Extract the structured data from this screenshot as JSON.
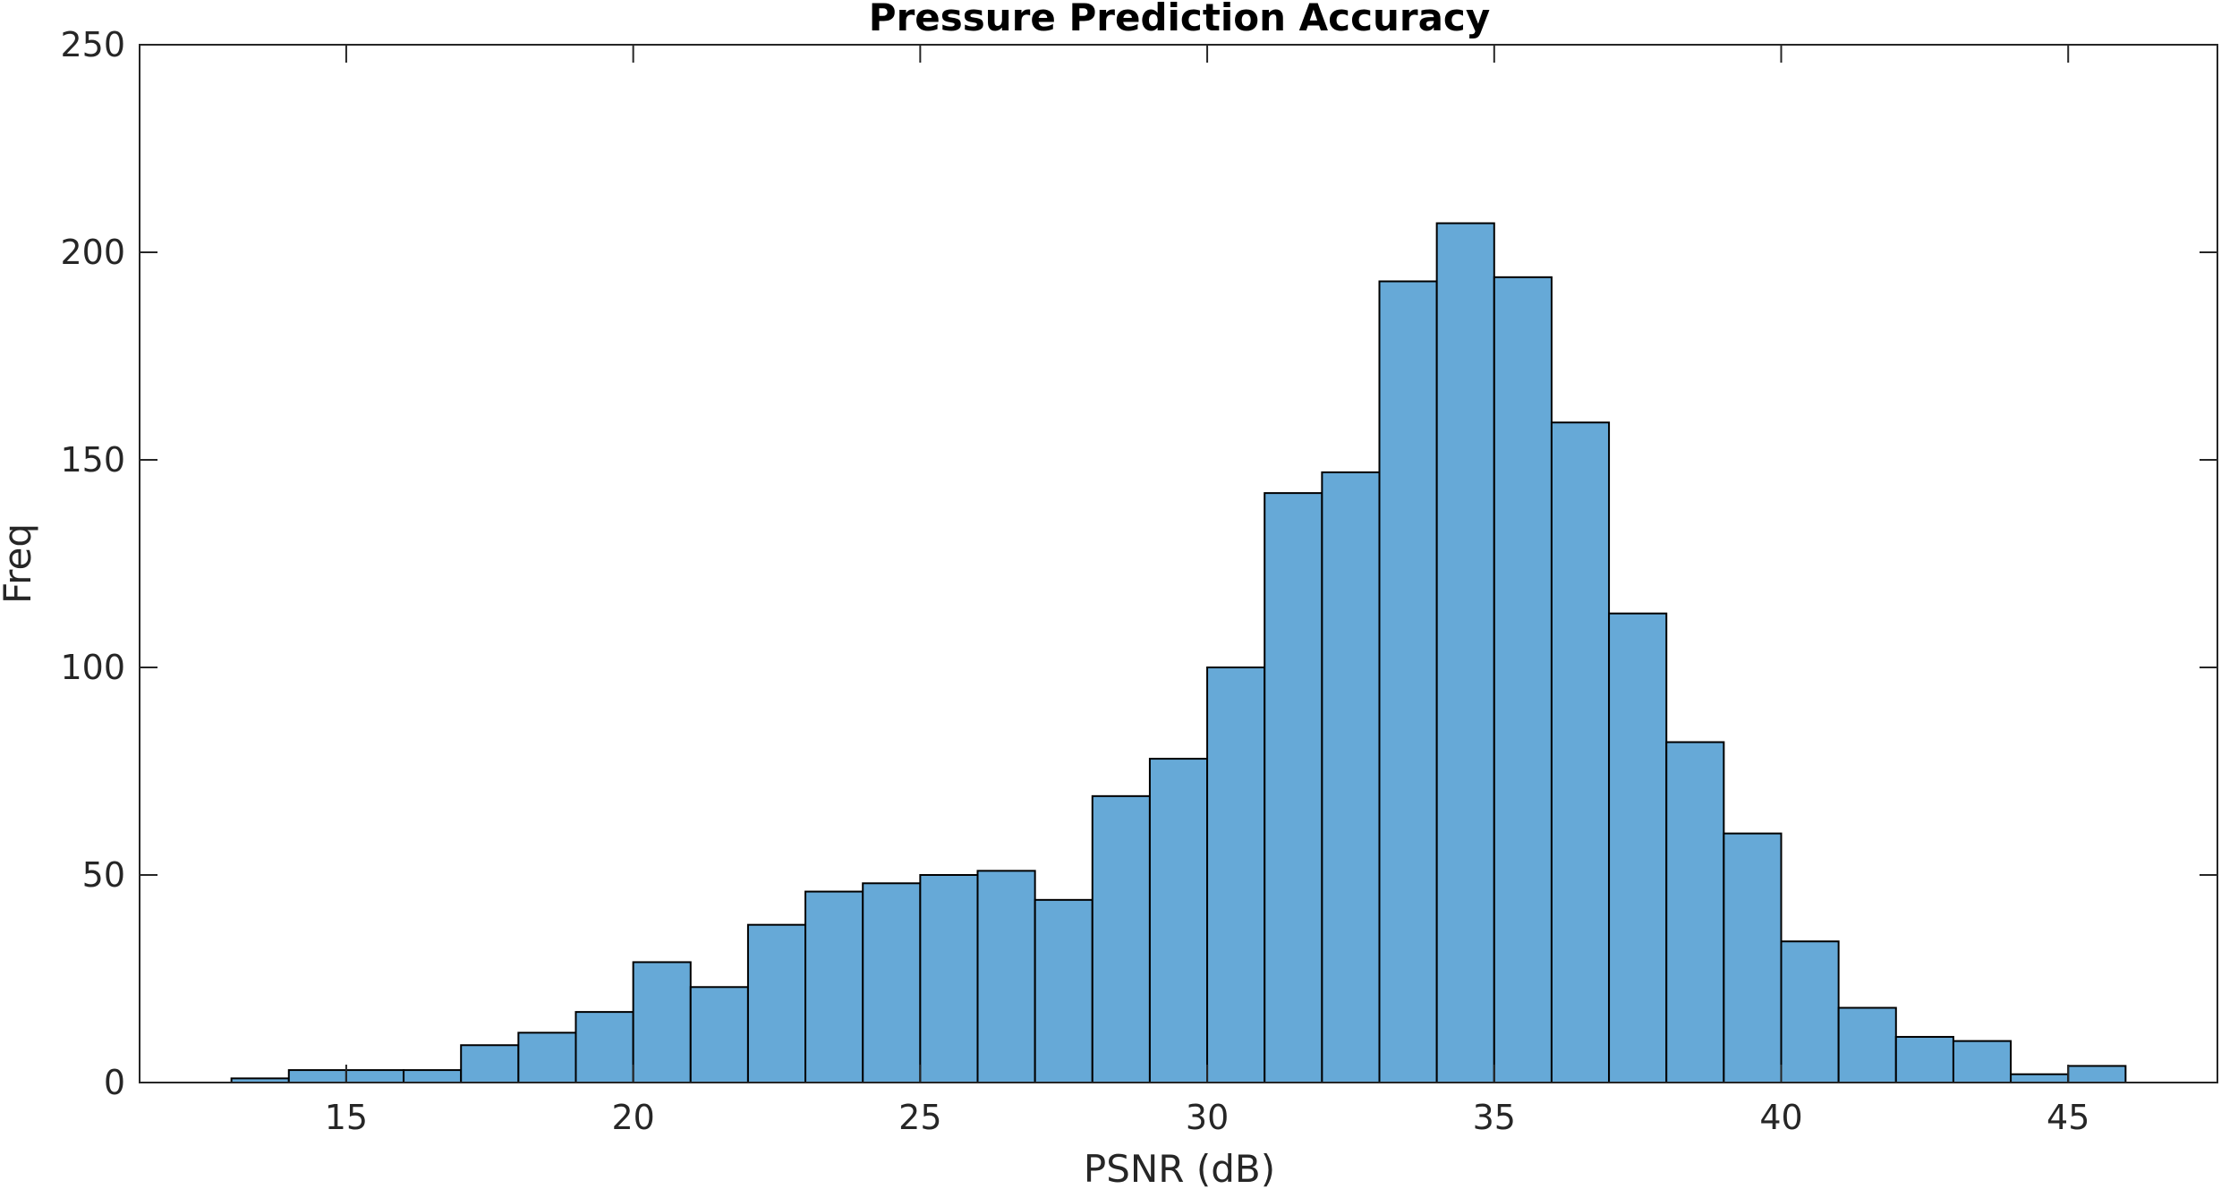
{
  "chart_data": {
    "type": "bar",
    "title": "Pressure Prediction Accuracy",
    "xlabel": "PSNR (dB)",
    "ylabel": "Freq",
    "xlim": [
      11.4,
      47.6
    ],
    "ylim": [
      0,
      250
    ],
    "grid": false,
    "bar_color": "#66a9d7",
    "edge_color": "#000000",
    "x_ticks": [
      "15",
      "20",
      "25",
      "30",
      "35",
      "40",
      "45"
    ],
    "y_ticks": [
      "0",
      "50",
      "100",
      "150",
      "200",
      "250"
    ],
    "bins": [
      {
        "x0": 13,
        "x1": 14,
        "value": 1
      },
      {
        "x0": 14,
        "x1": 15,
        "value": 3
      },
      {
        "x0": 15,
        "x1": 16,
        "value": 3
      },
      {
        "x0": 16,
        "x1": 17,
        "value": 3
      },
      {
        "x0": 17,
        "x1": 18,
        "value": 9
      },
      {
        "x0": 18,
        "x1": 19,
        "value": 12
      },
      {
        "x0": 19,
        "x1": 20,
        "value": 17
      },
      {
        "x0": 20,
        "x1": 21,
        "value": 29
      },
      {
        "x0": 21,
        "x1": 22,
        "value": 23
      },
      {
        "x0": 22,
        "x1": 23,
        "value": 38
      },
      {
        "x0": 23,
        "x1": 24,
        "value": 46
      },
      {
        "x0": 24,
        "x1": 25,
        "value": 48
      },
      {
        "x0": 25,
        "x1": 26,
        "value": 50
      },
      {
        "x0": 26,
        "x1": 27,
        "value": 51
      },
      {
        "x0": 27,
        "x1": 28,
        "value": 44
      },
      {
        "x0": 28,
        "x1": 29,
        "value": 69
      },
      {
        "x0": 29,
        "x1": 30,
        "value": 78
      },
      {
        "x0": 30,
        "x1": 31,
        "value": 100
      },
      {
        "x0": 31,
        "x1": 32,
        "value": 142
      },
      {
        "x0": 32,
        "x1": 33,
        "value": 147
      },
      {
        "x0": 33,
        "x1": 34,
        "value": 193
      },
      {
        "x0": 34,
        "x1": 35,
        "value": 207
      },
      {
        "x0": 35,
        "x1": 36,
        "value": 194
      },
      {
        "x0": 36,
        "x1": 37,
        "value": 159
      },
      {
        "x0": 37,
        "x1": 38,
        "value": 113
      },
      {
        "x0": 38,
        "x1": 39,
        "value": 82
      },
      {
        "x0": 39,
        "x1": 40,
        "value": 60
      },
      {
        "x0": 40,
        "x1": 41,
        "value": 34
      },
      {
        "x0": 41,
        "x1": 42,
        "value": 18
      },
      {
        "x0": 42,
        "x1": 43,
        "value": 11
      },
      {
        "x0": 43,
        "x1": 44,
        "value": 10
      },
      {
        "x0": 44,
        "x1": 45,
        "value": 2
      },
      {
        "x0": 45,
        "x1": 46,
        "value": 4
      }
    ]
  }
}
